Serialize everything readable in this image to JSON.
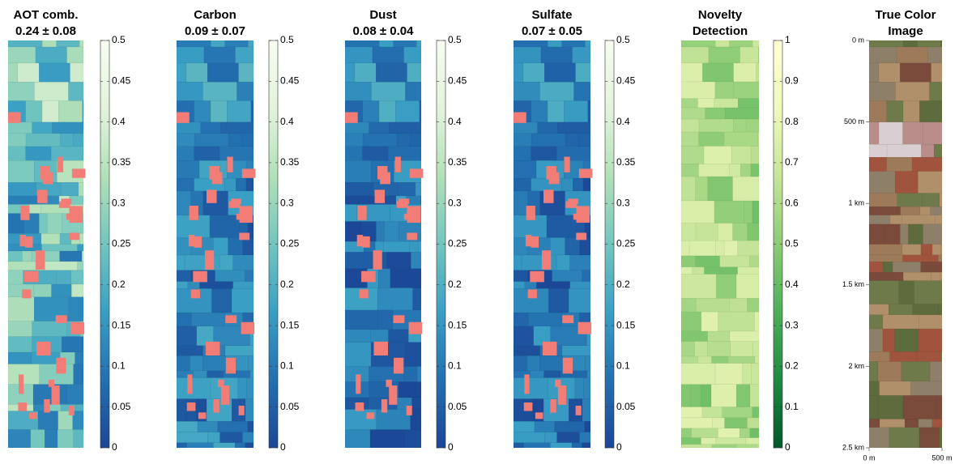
{
  "chart_data": [
    {
      "type": "map",
      "title": [
        "AOT comb.",
        "0.24 ± 0.08"
      ],
      "mask_color": "#f27d77",
      "clim": [
        0,
        0.5
      ],
      "cticks": [
        0,
        0.05,
        0.1,
        0.15,
        0.2,
        0.25,
        0.3,
        0.35,
        0.4,
        0.45,
        0.5
      ],
      "colormap": [
        "#1b4796",
        "#2370b0",
        "#3a9fc4",
        "#72c6bf",
        "#b2e0b8",
        "#e3f4dc",
        "#f7fcf0"
      ]
    },
    {
      "type": "map",
      "title": [
        "Carbon",
        "0.09 ± 0.07"
      ],
      "mask_color": "#f27d77",
      "clim": [
        0,
        0.5
      ],
      "cticks": [
        0,
        0.05,
        0.1,
        0.15,
        0.2,
        0.25,
        0.3,
        0.35,
        0.4,
        0.45,
        0.5
      ],
      "colormap": [
        "#1b4796",
        "#2370b0",
        "#3a9fc4",
        "#72c6bf",
        "#b2e0b8",
        "#e3f4dc",
        "#f7fcf0"
      ]
    },
    {
      "type": "map",
      "title": [
        "Dust",
        "0.08 ± 0.04"
      ],
      "mask_color": "#f27d77",
      "clim": [
        0,
        0.5
      ],
      "cticks": [
        0,
        0.05,
        0.1,
        0.15,
        0.2,
        0.25,
        0.3,
        0.35,
        0.4,
        0.45,
        0.5
      ],
      "colormap": [
        "#1b4796",
        "#2370b0",
        "#3a9fc4",
        "#72c6bf",
        "#b2e0b8",
        "#e3f4dc",
        "#f7fcf0"
      ]
    },
    {
      "type": "map",
      "title": [
        "Sulfate",
        "0.07 ± 0.05"
      ],
      "mask_color": "#f27d77",
      "clim": [
        0,
        0.5
      ],
      "cticks": [
        0,
        0.05,
        0.1,
        0.15,
        0.2,
        0.25,
        0.3,
        0.35,
        0.4,
        0.45,
        0.5
      ],
      "colormap": [
        "#1b4796",
        "#2370b0",
        "#3a9fc4",
        "#72c6bf",
        "#b2e0b8",
        "#e3f4dc",
        "#f7fcf0"
      ]
    },
    {
      "type": "map",
      "title": [
        "Novelty",
        "Detection"
      ],
      "clim": [
        0,
        1
      ],
      "cticks": [
        0,
        0.1,
        0.2,
        0.3,
        0.4,
        0.5,
        0.6,
        0.7,
        0.8,
        0.9,
        1
      ],
      "colormap": [
        "#00582a",
        "#1f8a42",
        "#4caf58",
        "#8ccc74",
        "#c6e598",
        "#f0f9bc",
        "#ffffd2"
      ]
    },
    {
      "type": "photo",
      "title": [
        "True Color",
        "Image"
      ],
      "ylim": [
        0,
        2500
      ],
      "yticks": [
        {
          "value": 0,
          "label": "0 m"
        },
        {
          "value": 500,
          "label": "500 m"
        },
        {
          "value": 1000,
          "label": "1 km"
        },
        {
          "value": 1500,
          "label": "1.5 km"
        },
        {
          "value": 2000,
          "label": "2 km"
        },
        {
          "value": 2500,
          "label": "2.5 km"
        }
      ],
      "xlim": [
        0,
        500
      ],
      "xticks": [
        {
          "value": 0,
          "label": "0 m"
        },
        {
          "value": 500,
          "label": "500 m"
        }
      ]
    }
  ]
}
